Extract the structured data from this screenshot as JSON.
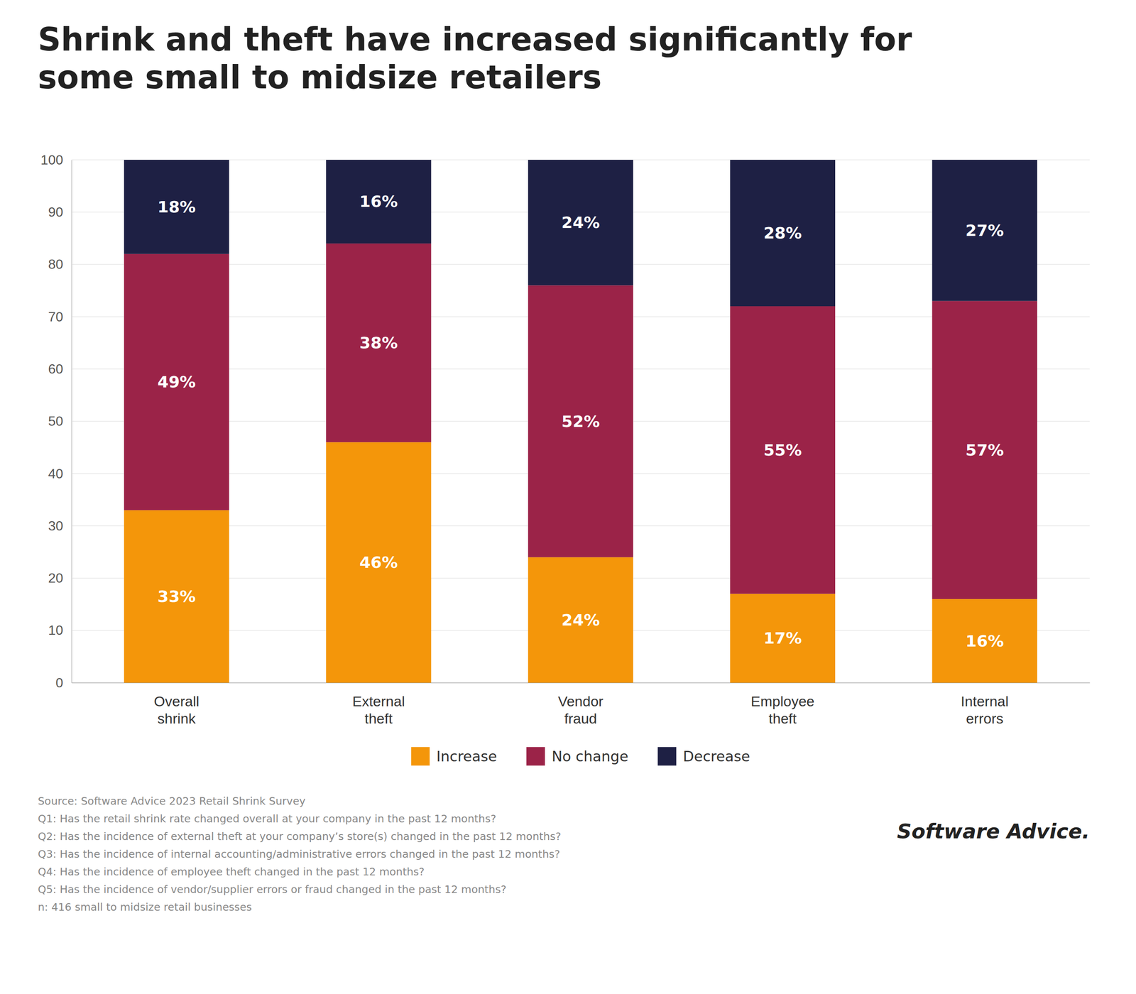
{
  "chart_data": {
    "type": "bar",
    "title": "Shrink and theft have increased significantly for\nsome small to midsize retailers",
    "categories": [
      "Overall\nshrink",
      "External\ntheft",
      "Vendor\nfraud",
      "Employee\ntheft",
      "Internal\nerrors"
    ],
    "series": [
      {
        "name": "Increase",
        "color": "#F4960A",
        "values": [
          33,
          46,
          24,
          17,
          16
        ],
        "value_labels": [
          "33%",
          "46%",
          "24%",
          "17%",
          "16%"
        ]
      },
      {
        "name": "No change",
        "color": "#9B2348",
        "values": [
          49,
          38,
          52,
          55,
          57
        ],
        "value_labels": [
          "49%",
          "38%",
          "52%",
          "55%",
          "57%"
        ]
      },
      {
        "name": "Decrease",
        "color": "#1E2044",
        "values": [
          18,
          16,
          24,
          28,
          27
        ],
        "value_labels": [
          "18%",
          "16%",
          "24%",
          "28%",
          "27%"
        ]
      }
    ],
    "stacked": true,
    "data_labels": true,
    "ylim": [
      0,
      100
    ],
    "yticks": [
      0,
      10,
      20,
      30,
      40,
      50,
      60,
      70,
      80,
      90,
      100
    ],
    "grid": true,
    "legend": "bottom",
    "annotations": [
      "Source: Software Advice 2023 Retail Shrink Survey",
      "Q1: Has the retail shrink rate changed overall at your company in the past 12 months?",
      "Q2: Has the incidence of external theft at your company’s store(s) changed in the past 12 months?",
      "Q3: Has the incidence of internal accounting/administrative errors changed in the past 12 months?",
      "Q4: Has the incidence of employee theft changed in the past 12 months?",
      "Q5: Has the incidence of vendor/supplier errors or fraud changed in the past 12 months?",
      "n: 416 small to midsize retail businesses",
      "Software Advice."
    ]
  }
}
